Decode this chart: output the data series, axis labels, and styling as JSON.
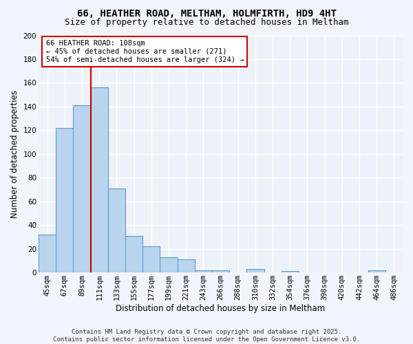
{
  "title": "66, HEATHER ROAD, MELTHAM, HOLMFIRTH, HD9 4HT",
  "subtitle": "Size of property relative to detached houses in Meltham",
  "xlabel": "Distribution of detached houses by size in Meltham",
  "ylabel": "Number of detached properties",
  "categories": [
    "45sqm",
    "67sqm",
    "89sqm",
    "111sqm",
    "133sqm",
    "155sqm",
    "177sqm",
    "199sqm",
    "221sqm",
    "243sqm",
    "266sqm",
    "288sqm",
    "310sqm",
    "332sqm",
    "354sqm",
    "376sqm",
    "398sqm",
    "420sqm",
    "442sqm",
    "464sqm",
    "486sqm"
  ],
  "values": [
    32,
    122,
    141,
    156,
    71,
    31,
    22,
    13,
    11,
    2,
    2,
    0,
    3,
    0,
    1,
    0,
    0,
    0,
    0,
    2,
    0
  ],
  "bar_color": "#b8d4ee",
  "bar_edge_color": "#5590c8",
  "vline_color": "#cc0000",
  "vline_x_index": 2.5,
  "annotation_text": "66 HEATHER ROAD: 108sqm\n← 45% of detached houses are smaller (271)\n54% of semi-detached houses are larger (324) →",
  "annotation_box_facecolor": "#ffffff",
  "annotation_box_edgecolor": "#cc0000",
  "ylim": [
    0,
    200
  ],
  "yticks": [
    0,
    20,
    40,
    60,
    80,
    100,
    120,
    140,
    160,
    180,
    200
  ],
  "footer_text": "Contains HM Land Registry data © Crown copyright and database right 2025.\nContains public sector information licensed under the Open Government Licence v3.0.",
  "bg_color": "#f0f4fb",
  "plot_bg_color": "#edf1f8",
  "grid_color": "#ffffff",
  "title_fontsize": 10,
  "subtitle_fontsize": 9,
  "axis_label_fontsize": 8.5,
  "tick_fontsize": 7.5,
  "annotation_fontsize": 7.5,
  "footer_fontsize": 6.5
}
